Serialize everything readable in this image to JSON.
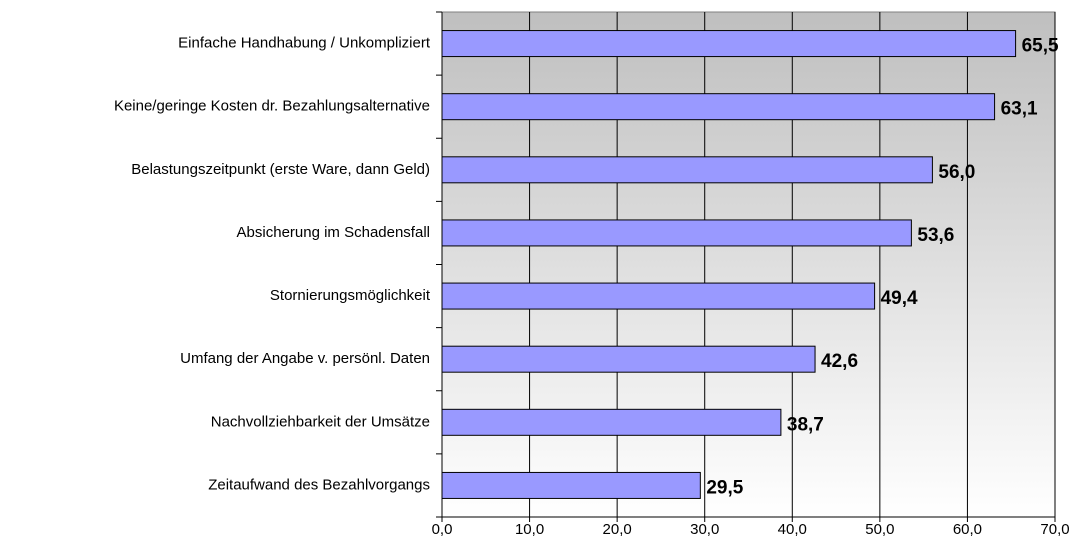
{
  "chart_data": {
    "type": "bar",
    "orientation": "horizontal",
    "categories": [
      "Einfache Handhabung / Unkompliziert",
      "Keine/geringe Kosten dr. Bezahlungsalternative",
      "Belastungszeitpunkt (erste Ware, dann Geld)",
      "Absicherung im Schadensfall",
      "Stornierungsmöglichkeit",
      "Umfang der Angabe v. persönl. Daten",
      "Nachvollziehbarkeit der Umsätze",
      "Zeitaufwand des Bezahlvorgangs"
    ],
    "values": [
      65.5,
      63.1,
      56.0,
      53.6,
      49.4,
      42.6,
      38.7,
      29.5
    ],
    "value_labels": [
      "65,5",
      "63,1",
      "56,0",
      "53,6",
      "49,4",
      "42,6",
      "38,7",
      "29,5"
    ],
    "color": "#9999ff",
    "xlim": [
      0,
      70
    ],
    "xticks": [
      {
        "value": 0,
        "label": "0,0"
      },
      {
        "value": 10,
        "label": "10,0"
      },
      {
        "value": 20,
        "label": "20,0"
      },
      {
        "value": 30,
        "label": "30,0"
      },
      {
        "value": 40,
        "label": "40,0"
      },
      {
        "value": 50,
        "label": "50,0"
      },
      {
        "value": 60,
        "label": "60,0"
      },
      {
        "value": 70,
        "label": "70,0"
      }
    ],
    "grid": true
  }
}
